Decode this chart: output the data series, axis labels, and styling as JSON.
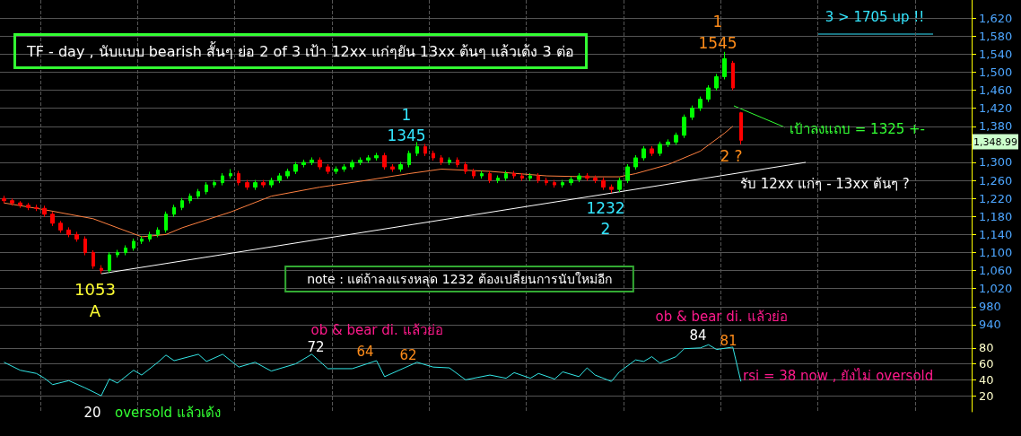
{
  "chart_data": [
    {
      "type": "candlestick",
      "title": "TF - day , นับแบบ bearish สั้นๆ ย่อ 2 of 3 เป้า 12xx แก่ๆยัน 13xx ต้นๆ แล้วเด้ง 3 ต่อ",
      "categories": [
        null,
        null,
        null,
        null,
        null,
        null,
        null,
        null,
        null,
        null,
        null,
        null,
        null,
        null,
        null,
        null,
        null,
        null,
        null,
        null,
        null,
        null,
        null,
        null,
        null,
        null,
        null,
        null,
        null,
        null,
        null,
        null,
        null,
        null,
        null,
        null,
        null,
        null,
        null,
        null,
        null,
        null,
        null,
        null,
        null,
        null,
        null,
        null,
        null,
        null,
        null,
        null,
        null,
        null,
        null,
        null,
        null,
        null,
        null,
        null,
        null,
        null,
        null,
        null,
        null,
        null,
        null,
        null,
        null,
        null,
        null,
        null,
        null,
        null,
        null,
        null,
        null,
        null,
        null,
        null,
        null,
        null,
        null,
        null,
        null,
        null,
        null,
        null,
        null,
        null,
        null,
        null,
        null,
        null,
        null,
        null,
        null,
        null,
        null,
        null,
        null,
        null,
        null,
        null,
        null,
        null,
        null,
        null,
        null,
        null,
        null,
        null,
        null,
        null,
        null,
        null,
        null,
        null,
        null,
        null
      ],
      "ohlc": [
        [
          1220,
          1226,
          1209,
          1215
        ],
        [
          1215,
          1220,
          1204,
          1210
        ],
        [
          1210,
          1214,
          1199,
          1205
        ],
        [
          1205,
          1210,
          1194,
          1200
        ],
        [
          1200,
          1206,
          1192,
          1198
        ],
        [
          1198,
          1204,
          1179,
          1185
        ],
        [
          1185,
          1190,
          1159,
          1165
        ],
        [
          1165,
          1170,
          1144,
          1150
        ],
        [
          1150,
          1156,
          1134,
          1140
        ],
        [
          1140,
          1146,
          1124,
          1130
        ],
        [
          1130,
          1136,
          1094,
          1100
        ],
        [
          1100,
          1105,
          1064,
          1070
        ],
        [
          1065,
          1072,
          1053,
          1060
        ],
        [
          1060,
          1101,
          1055,
          1095
        ],
        [
          1095,
          1106,
          1089,
          1100
        ],
        [
          1100,
          1116,
          1094,
          1110
        ],
        [
          1110,
          1131,
          1104,
          1125
        ],
        [
          1125,
          1136,
          1119,
          1130
        ],
        [
          1130,
          1146,
          1124,
          1140
        ],
        [
          1140,
          1156,
          1134,
          1150
        ],
        [
          1150,
          1191,
          1144,
          1185
        ],
        [
          1185,
          1206,
          1179,
          1200
        ],
        [
          1200,
          1221,
          1194,
          1215
        ],
        [
          1215,
          1231,
          1209,
          1225
        ],
        [
          1225,
          1241,
          1219,
          1235
        ],
        [
          1235,
          1256,
          1229,
          1250
        ],
        [
          1250,
          1261,
          1244,
          1255
        ],
        [
          1255,
          1276,
          1249,
          1270
        ],
        [
          1270,
          1285,
          1264,
          1275
        ],
        [
          1275,
          1281,
          1249,
          1255
        ],
        [
          1255,
          1261,
          1239,
          1245
        ],
        [
          1245,
          1261,
          1239,
          1255
        ],
        [
          1255,
          1261,
          1244,
          1250
        ],
        [
          1250,
          1266,
          1244,
          1260
        ],
        [
          1260,
          1276,
          1254,
          1270
        ],
        [
          1270,
          1286,
          1264,
          1280
        ],
        [
          1280,
          1301,
          1274,
          1295
        ],
        [
          1295,
          1306,
          1289,
          1300
        ],
        [
          1300,
          1311,
          1294,
          1305
        ],
        [
          1305,
          1311,
          1284,
          1290
        ],
        [
          1290,
          1296,
          1274,
          1280
        ],
        [
          1280,
          1291,
          1274,
          1285
        ],
        [
          1285,
          1296,
          1279,
          1290
        ],
        [
          1290,
          1306,
          1284,
          1300
        ],
        [
          1300,
          1311,
          1294,
          1305
        ],
        [
          1305,
          1316,
          1299,
          1310
        ],
        [
          1310,
          1321,
          1304,
          1315
        ],
        [
          1315,
          1321,
          1284,
          1290
        ],
        [
          1290,
          1296,
          1279,
          1285
        ],
        [
          1285,
          1301,
          1279,
          1295
        ],
        [
          1295,
          1326,
          1289,
          1320
        ],
        [
          1320,
          1345,
          1314,
          1335
        ],
        [
          1335,
          1341,
          1314,
          1320
        ],
        [
          1320,
          1326,
          1304,
          1310
        ],
        [
          1310,
          1316,
          1294,
          1300
        ],
        [
          1300,
          1311,
          1294,
          1305
        ],
        [
          1305,
          1311,
          1289,
          1295
        ],
        [
          1295,
          1301,
          1274,
          1280
        ],
        [
          1280,
          1286,
          1264,
          1270
        ],
        [
          1270,
          1281,
          1264,
          1275
        ],
        [
          1275,
          1281,
          1254,
          1260
        ],
        [
          1260,
          1271,
          1254,
          1265
        ],
        [
          1265,
          1281,
          1259,
          1275
        ],
        [
          1275,
          1281,
          1264,
          1270
        ],
        [
          1270,
          1276,
          1259,
          1265
        ],
        [
          1265,
          1276,
          1259,
          1270
        ],
        [
          1270,
          1276,
          1254,
          1260
        ],
        [
          1260,
          1266,
          1249,
          1255
        ],
        [
          1255,
          1261,
          1244,
          1250
        ],
        [
          1250,
          1261,
          1244,
          1255
        ],
        [
          1255,
          1268,
          1249,
          1262
        ],
        [
          1262,
          1276,
          1256,
          1270
        ],
        [
          1270,
          1276,
          1259,
          1265
        ],
        [
          1265,
          1271,
          1254,
          1260
        ],
        [
          1260,
          1266,
          1239,
          1245
        ],
        [
          1245,
          1251,
          1232,
          1240
        ],
        [
          1240,
          1266,
          1234,
          1260
        ],
        [
          1260,
          1296,
          1254,
          1290
        ],
        [
          1290,
          1316,
          1284,
          1310
        ],
        [
          1310,
          1336,
          1304,
          1330
        ],
        [
          1330,
          1336,
          1314,
          1320
        ],
        [
          1320,
          1346,
          1314,
          1340
        ],
        [
          1340,
          1351,
          1334,
          1345
        ],
        [
          1345,
          1366,
          1339,
          1360
        ],
        [
          1360,
          1406,
          1354,
          1400
        ],
        [
          1400,
          1426,
          1394,
          1420
        ],
        [
          1420,
          1446,
          1414,
          1440
        ],
        [
          1440,
          1471,
          1434,
          1465
        ],
        [
          1465,
          1496,
          1459,
          1490
        ],
        [
          1490,
          1545,
          1484,
          1530
        ],
        [
          1520,
          1525,
          1460,
          1465
        ],
        [
          1410,
          1412,
          1340,
          1348.99
        ],
        null,
        null,
        null,
        null,
        null,
        null,
        null,
        null,
        null,
        null,
        null,
        null,
        null,
        null,
        null,
        null,
        null,
        null,
        null,
        null,
        null,
        null,
        null,
        null,
        null,
        null,
        null,
        null
      ],
      "series": [
        {
          "type": "line",
          "color": "#ff8040",
          "values": [
            1210,
            null,
            null,
            null,
            null,
            1195,
            null,
            null,
            null,
            null,
            null,
            1175,
            null,
            null,
            null,
            null,
            null,
            1135,
            null,
            null,
            1140,
            null,
            1155,
            null,
            null,
            null,
            null,
            null,
            1190,
            null,
            null,
            null,
            null,
            1225,
            null,
            null,
            null,
            null,
            null,
            1245,
            null,
            null,
            null,
            null,
            1258,
            null,
            null,
            null,
            null,
            null,
            1275,
            null,
            null,
            null,
            1285,
            null,
            null,
            null,
            null,
            null,
            1280,
            null,
            null,
            null,
            null,
            null,
            null,
            1270,
            null,
            null,
            null,
            null,
            1268,
            null,
            null,
            null,
            1268,
            null,
            1275,
            null,
            null,
            null,
            1295,
            null,
            null,
            null,
            1325,
            null,
            null,
            1365,
            1380,
            null,
            null,
            null,
            null,
            null,
            null,
            null,
            null,
            null,
            null,
            null,
            null,
            null,
            null,
            null,
            null,
            null,
            null,
            null,
            null,
            null,
            null,
            null,
            null,
            null,
            null,
            null,
            null,
            null
          ]
        },
        {
          "type": "line",
          "color": "#ffffff",
          "values": [
            null,
            null,
            null,
            null,
            null,
            null,
            null,
            null,
            null,
            null,
            null,
            null,
            1053,
            null,
            null,
            null,
            null,
            null,
            null,
            null,
            null,
            null,
            null,
            null,
            null,
            null,
            null,
            null,
            null,
            null,
            null,
            null,
            null,
            null,
            null,
            null,
            null,
            null,
            null,
            null,
            null,
            null,
            null,
            null,
            null,
            null,
            null,
            null,
            null,
            null,
            null,
            null,
            null,
            null,
            null,
            null,
            null,
            null,
            null,
            null,
            null,
            null,
            null,
            null,
            null,
            null,
            null,
            null,
            null,
            null,
            null,
            null,
            null,
            null,
            null,
            null,
            null,
            null,
            null,
            null,
            null,
            null,
            null,
            null,
            null,
            null,
            null,
            null,
            null,
            null,
            null,
            null,
            null,
            null,
            null,
            null,
            null,
            null,
            null,
            1300,
            null,
            null,
            null,
            null,
            null,
            null,
            null,
            null,
            null,
            null,
            null,
            null,
            null,
            null,
            null,
            null,
            null,
            null,
            null,
            null
          ]
        }
      ],
      "ylim": [
        920,
        1660
      ],
      "yticks": [
        940,
        980,
        {
          "value": 1020,
          "label": "1,020"
        },
        {
          "value": 1060,
          "label": "1,060"
        },
        {
          "value": 1100,
          "label": "1,100"
        },
        {
          "value": 1140,
          "label": "1,140"
        },
        {
          "value": 1180,
          "label": "1,180"
        },
        {
          "value": 1220,
          "label": "1,220"
        },
        {
          "value": 1260,
          "label": "1,260"
        },
        {
          "value": 1300,
          "label": "1,300"
        },
        {
          "value": 1340,
          "label": null
        },
        {
          "value": 1380,
          "label": "1,380"
        },
        {
          "value": 1420,
          "label": "1,420"
        },
        {
          "value": 1460,
          "label": "1,460"
        },
        {
          "value": 1500,
          "label": "1,500"
        },
        {
          "value": 1540,
          "label": "1,540"
        },
        {
          "value": 1580,
          "label": "1,580"
        },
        {
          "value": 1620,
          "label": "1,620"
        }
      ],
      "grid": true,
      "tick_labels": "y",
      "annotations": [
        "1\n1345",
        "1232\n2",
        "1053\nA",
        "1\n1545",
        "2 ?",
        "เป้าลงแถบ = 1325 +-",
        "รับ 12xx แก่ๆ - 13xx ต้นๆ ?",
        "note : แต่ถ้าลงแรงหลุด 1232 ต้องเปลี่ยนการนับใหม่อีก",
        "3 > 1705 up !!",
        "1,348.99"
      ]
    },
    {
      "type": "line",
      "color": "#33e6e6",
      "categories": [
        null,
        null,
        null,
        null,
        null,
        null,
        null,
        null,
        null,
        null,
        null,
        null,
        null,
        null,
        null,
        null,
        null,
        null,
        null,
        null,
        null,
        null,
        null,
        null,
        null,
        null,
        null,
        null,
        null,
        null,
        null,
        null,
        null,
        null,
        null,
        null,
        null,
        null,
        null,
        null,
        null,
        null,
        null,
        null,
        null,
        null,
        null,
        null,
        null,
        null,
        null,
        null,
        null,
        null,
        null,
        null,
        null,
        null,
        null,
        null,
        null,
        null,
        null,
        null,
        null,
        null,
        null,
        null,
        null,
        null,
        null,
        null,
        null,
        null,
        null,
        null,
        null,
        null,
        null,
        null,
        null,
        null,
        null,
        null,
        null,
        null,
        null,
        null,
        null,
        null,
        null,
        null,
        null,
        null,
        null,
        null,
        null,
        null,
        null,
        null,
        null,
        null,
        null,
        null,
        null,
        null,
        null,
        null,
        null,
        null,
        null,
        null,
        null,
        null,
        null,
        null,
        null,
        null,
        null,
        null
      ],
      "values": [
        62,
        null,
        52,
        null,
        48,
        42,
        34,
        null,
        39,
        null,
        30,
        null,
        20,
        41,
        36,
        null,
        52,
        46,
        null,
        62,
        71,
        64,
        null,
        null,
        72,
        63,
        null,
        72,
        null,
        56,
        null,
        62,
        null,
        51,
        null,
        null,
        60,
        null,
        72,
        null,
        54,
        null,
        null,
        54,
        null,
        null,
        64,
        44,
        null,
        null,
        null,
        62,
        null,
        56,
        null,
        55,
        null,
        40,
        null,
        null,
        46,
        null,
        42,
        49,
        null,
        42,
        48,
        null,
        41,
        50,
        null,
        44,
        55,
        46,
        null,
        38,
        50,
        null,
        65,
        63,
        69,
        61,
        null,
        69,
        79,
        null,
        80,
        84,
        78,
        null,
        81,
        38,
        null,
        null,
        null,
        null,
        null,
        null,
        null,
        null,
        null,
        null,
        null,
        null,
        null,
        null,
        null,
        null,
        null,
        null,
        null,
        null,
        null,
        null,
        null,
        null,
        null,
        null,
        null,
        null
      ],
      "ylim": [
        0,
        100
      ],
      "yticks": [
        20,
        40,
        60,
        80
      ],
      "grid": true,
      "tick_labels": "y",
      "annotations": [
        "ob & bear di. แล้วย่อ",
        "72",
        "64",
        "62",
        "ob & bear di. แล้วย่อ",
        "84",
        "81",
        "rsi = 38 now , ยังไม่ oversold",
        "20",
        "oversold แล้วเด้ง"
      ]
    }
  ]
}
